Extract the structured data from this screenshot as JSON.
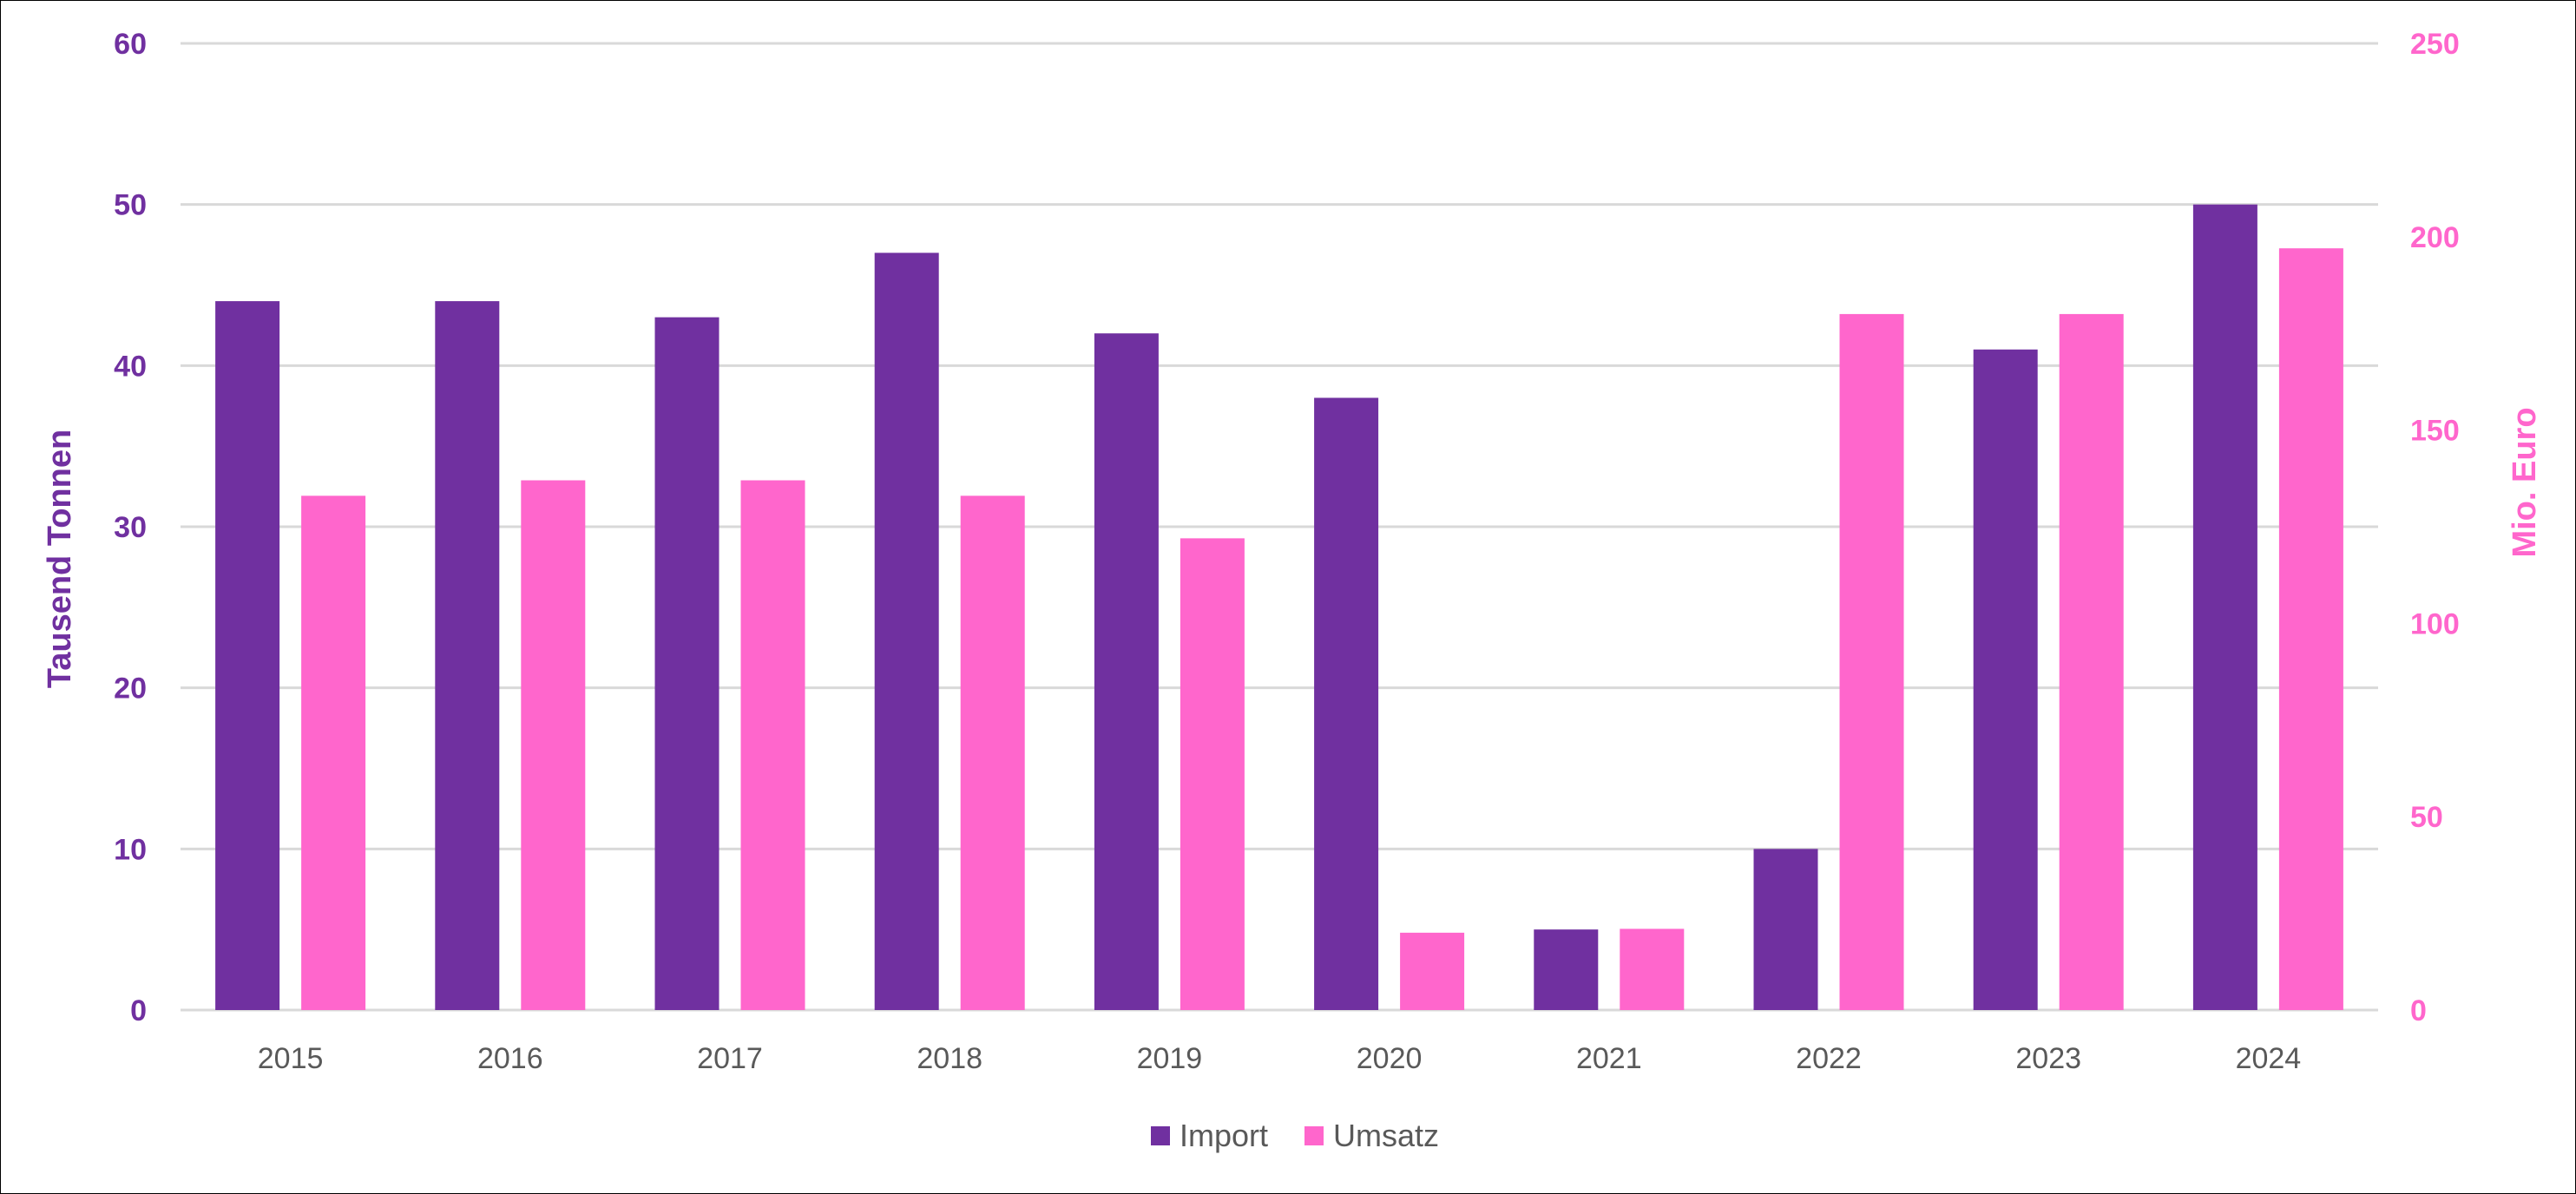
{
  "chart_data": {
    "type": "bar",
    "title": "",
    "categories": [
      "2015",
      "2016",
      "2017",
      "2018",
      "2019",
      "2020",
      "2021",
      "2022",
      "2023",
      "2024"
    ],
    "series": [
      {
        "name": "Import",
        "axis": "left",
        "color": "#7030A0",
        "values": [
          44,
          44,
          43,
          47,
          42,
          38,
          5,
          10,
          41,
          50
        ]
      },
      {
        "name": "Umsatz",
        "axis": "right",
        "color": "#FF66CC",
        "values": [
          133,
          137,
          137,
          133,
          122,
          20,
          21,
          180,
          180,
          197
        ]
      }
    ],
    "ylabel": "Tausend Tonnen",
    "ylabel_right": "Mio. Euro",
    "xlabel": "",
    "ylim": [
      0,
      60
    ],
    "ylim_right": [
      0,
      250
    ],
    "yticks": [
      "0",
      "10",
      "20",
      "30",
      "40",
      "50",
      "60"
    ],
    "yticks_right": [
      "0",
      "50",
      "100",
      "150",
      "200",
      "250"
    ],
    "grid": true,
    "legend_position": "bottom",
    "colors": {
      "left_axis": "#7030A0",
      "right_axis": "#FF66CC",
      "gridline": "#D9D9D9",
      "category_text": "#595959"
    }
  }
}
